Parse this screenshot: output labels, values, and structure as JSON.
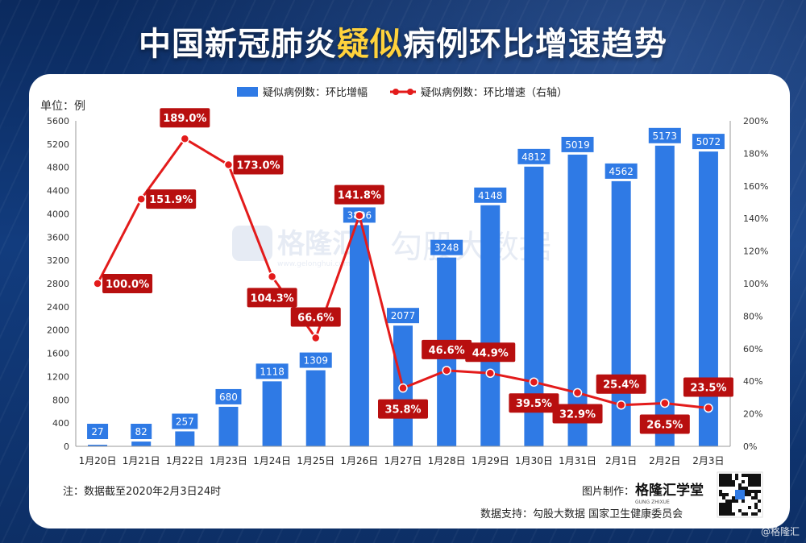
{
  "header": {
    "title_pre": "中国新冠肺炎",
    "title_highlight": "疑似",
    "title_post": "病例环比增速趋势"
  },
  "colors": {
    "bar": "#2f7ae5",
    "line": "#e31b1b",
    "label_box": "#b80f0f",
    "highlight": "#ffd23c"
  },
  "chart_data": {
    "type": "bar+line",
    "unit_label": "单位：例",
    "categories": [
      "1月20日",
      "1月21日",
      "1月22日",
      "1月23日",
      "1月24日",
      "1月25日",
      "1月26日",
      "1月27日",
      "1月28日",
      "1月29日",
      "1月30日",
      "1月31日",
      "2月1日",
      "2月2日",
      "2月3日"
    ],
    "series": [
      {
        "name": "疑似病例数：环比增幅",
        "type": "bar",
        "axis": "left",
        "values": [
          27,
          82,
          257,
          680,
          1118,
          1309,
          3806,
          2077,
          3248,
          4148,
          4812,
          5019,
          4562,
          5173,
          5072
        ],
        "labels": [
          "27",
          "82",
          "257",
          "680",
          "1118",
          "1309",
          "3806",
          "2077",
          "3248",
          "4148",
          "4812",
          "5019",
          "4562",
          "5173",
          "5072"
        ]
      },
      {
        "name": "疑似病例数：环比增速（右轴）",
        "type": "line",
        "axis": "right",
        "values": [
          100.0,
          151.9,
          189.0,
          173.0,
          104.3,
          66.6,
          141.8,
          35.8,
          46.6,
          44.9,
          39.5,
          32.9,
          25.4,
          26.5,
          23.5
        ],
        "labels": [
          "100.0%",
          "151.9%",
          "189.0%",
          "173.0%",
          "104.3%",
          "66.6%",
          "141.8%",
          "35.8%",
          "46.6%",
          "44.9%",
          "39.5%",
          "32.9%",
          "25.4%",
          "26.5%",
          "23.5%"
        ],
        "label_pos": [
          "right",
          "right",
          "above",
          "right",
          "below",
          "above",
          "above",
          "below",
          "above",
          "above",
          "below",
          "below",
          "above",
          "below",
          "above"
        ]
      }
    ],
    "y_left": {
      "min": 0,
      "max": 5600,
      "ticks": [
        "0",
        "400",
        "800",
        "1200",
        "1600",
        "2000",
        "2400",
        "2800",
        "3200",
        "3600",
        "4000",
        "4400",
        "4800",
        "5200",
        "5600"
      ]
    },
    "y_right": {
      "min": 0,
      "max": 200,
      "ticks": [
        "0%",
        "20%",
        "40%",
        "60%",
        "80%",
        "100%",
        "120%",
        "140%",
        "160%",
        "180%",
        "200%"
      ]
    },
    "legend_position": "top"
  },
  "footer": {
    "note": "注：数据截至2020年2月3日24时",
    "maker_label": "图片制作：",
    "maker_brand": "格隆汇学堂",
    "brand_sub": "GUNG ZHIXUE",
    "support": "数据支持：勾股大数据  国家卫生健康委员会"
  },
  "watermark": {
    "logo_text": "格隆汇",
    "logo_url_text": "www.gelonghui.com",
    "brand_text": "勾股大数据",
    "corner_text": "@格隆汇"
  }
}
